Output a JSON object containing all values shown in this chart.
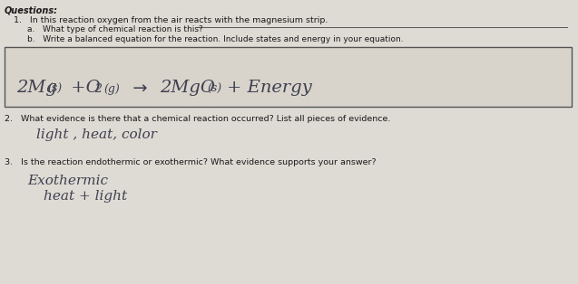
{
  "page_bg": "#dedad4",
  "title": "Questions:",
  "q1_text": "1.   In this reaction oxygen from the air reacts with the magnesium strip.",
  "q1a_text": "a.   What type of chemical reaction is this?",
  "q1b_text": "b.   Write a balanced equation for the reaction. Include states and energy in your equation.",
  "q2_text": "2.   What evidence is there that a chemical reaction occurred? List all pieces of evidence.",
  "q2_answer": "light , heat, color",
  "q3_text": "3.   Is the reaction endothermic or exothermic? What evidence supports your answer?",
  "q3_answer_line1": "Exothermic",
  "q3_answer_line2": "heat + light",
  "text_color": "#1a1a1a",
  "handwriting_color": "#404050",
  "line_color": "#555555",
  "box_edge_color": "#555555",
  "box_face_color": "#d8d4cc"
}
